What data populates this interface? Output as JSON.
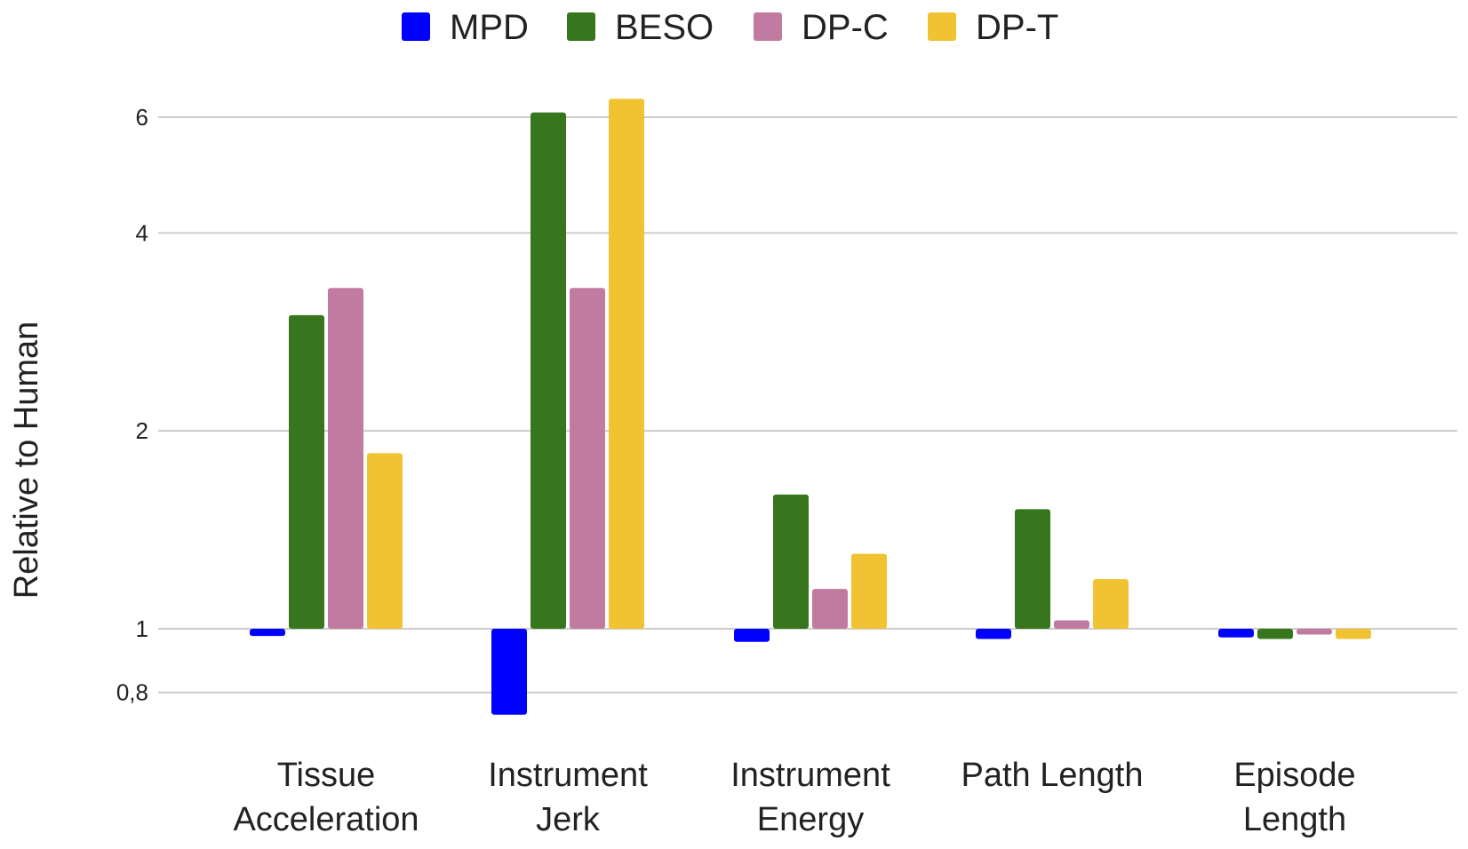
{
  "chart_data": {
    "type": "bar",
    "title": "",
    "xlabel": "",
    "ylabel": "Relative to Human",
    "y_scale": "log",
    "baseline": 1,
    "ylim": [
      0.72,
      6.4
    ],
    "yticks": [
      0.8,
      1,
      2,
      4,
      6
    ],
    "ytick_labels": [
      "0,8",
      "1",
      "2",
      "4",
      "6"
    ],
    "grid": true,
    "legend_position": "top-center",
    "categories": [
      [
        "Tissue",
        "Acceleration"
      ],
      [
        "Instrument",
        "Jerk"
      ],
      [
        "Instrument",
        "Energy"
      ],
      [
        "Path Length"
      ],
      [
        "Episode",
        "Length"
      ]
    ],
    "series": [
      {
        "name": "MPD",
        "color": "#0000ff",
        "values": [
          0.975,
          0.74,
          0.955,
          0.965,
          0.97
        ]
      },
      {
        "name": "BESO",
        "color": "#38761d",
        "values": [
          3.0,
          6.1,
          1.6,
          1.52,
          0.965
        ]
      },
      {
        "name": "DP-C",
        "color": "#c27ba0",
        "values": [
          3.3,
          3.3,
          1.15,
          1.03,
          0.98
        ]
      },
      {
        "name": "DP-T",
        "color": "#f1c232",
        "values": [
          1.85,
          6.4,
          1.3,
          1.19,
          0.965
        ]
      }
    ]
  }
}
